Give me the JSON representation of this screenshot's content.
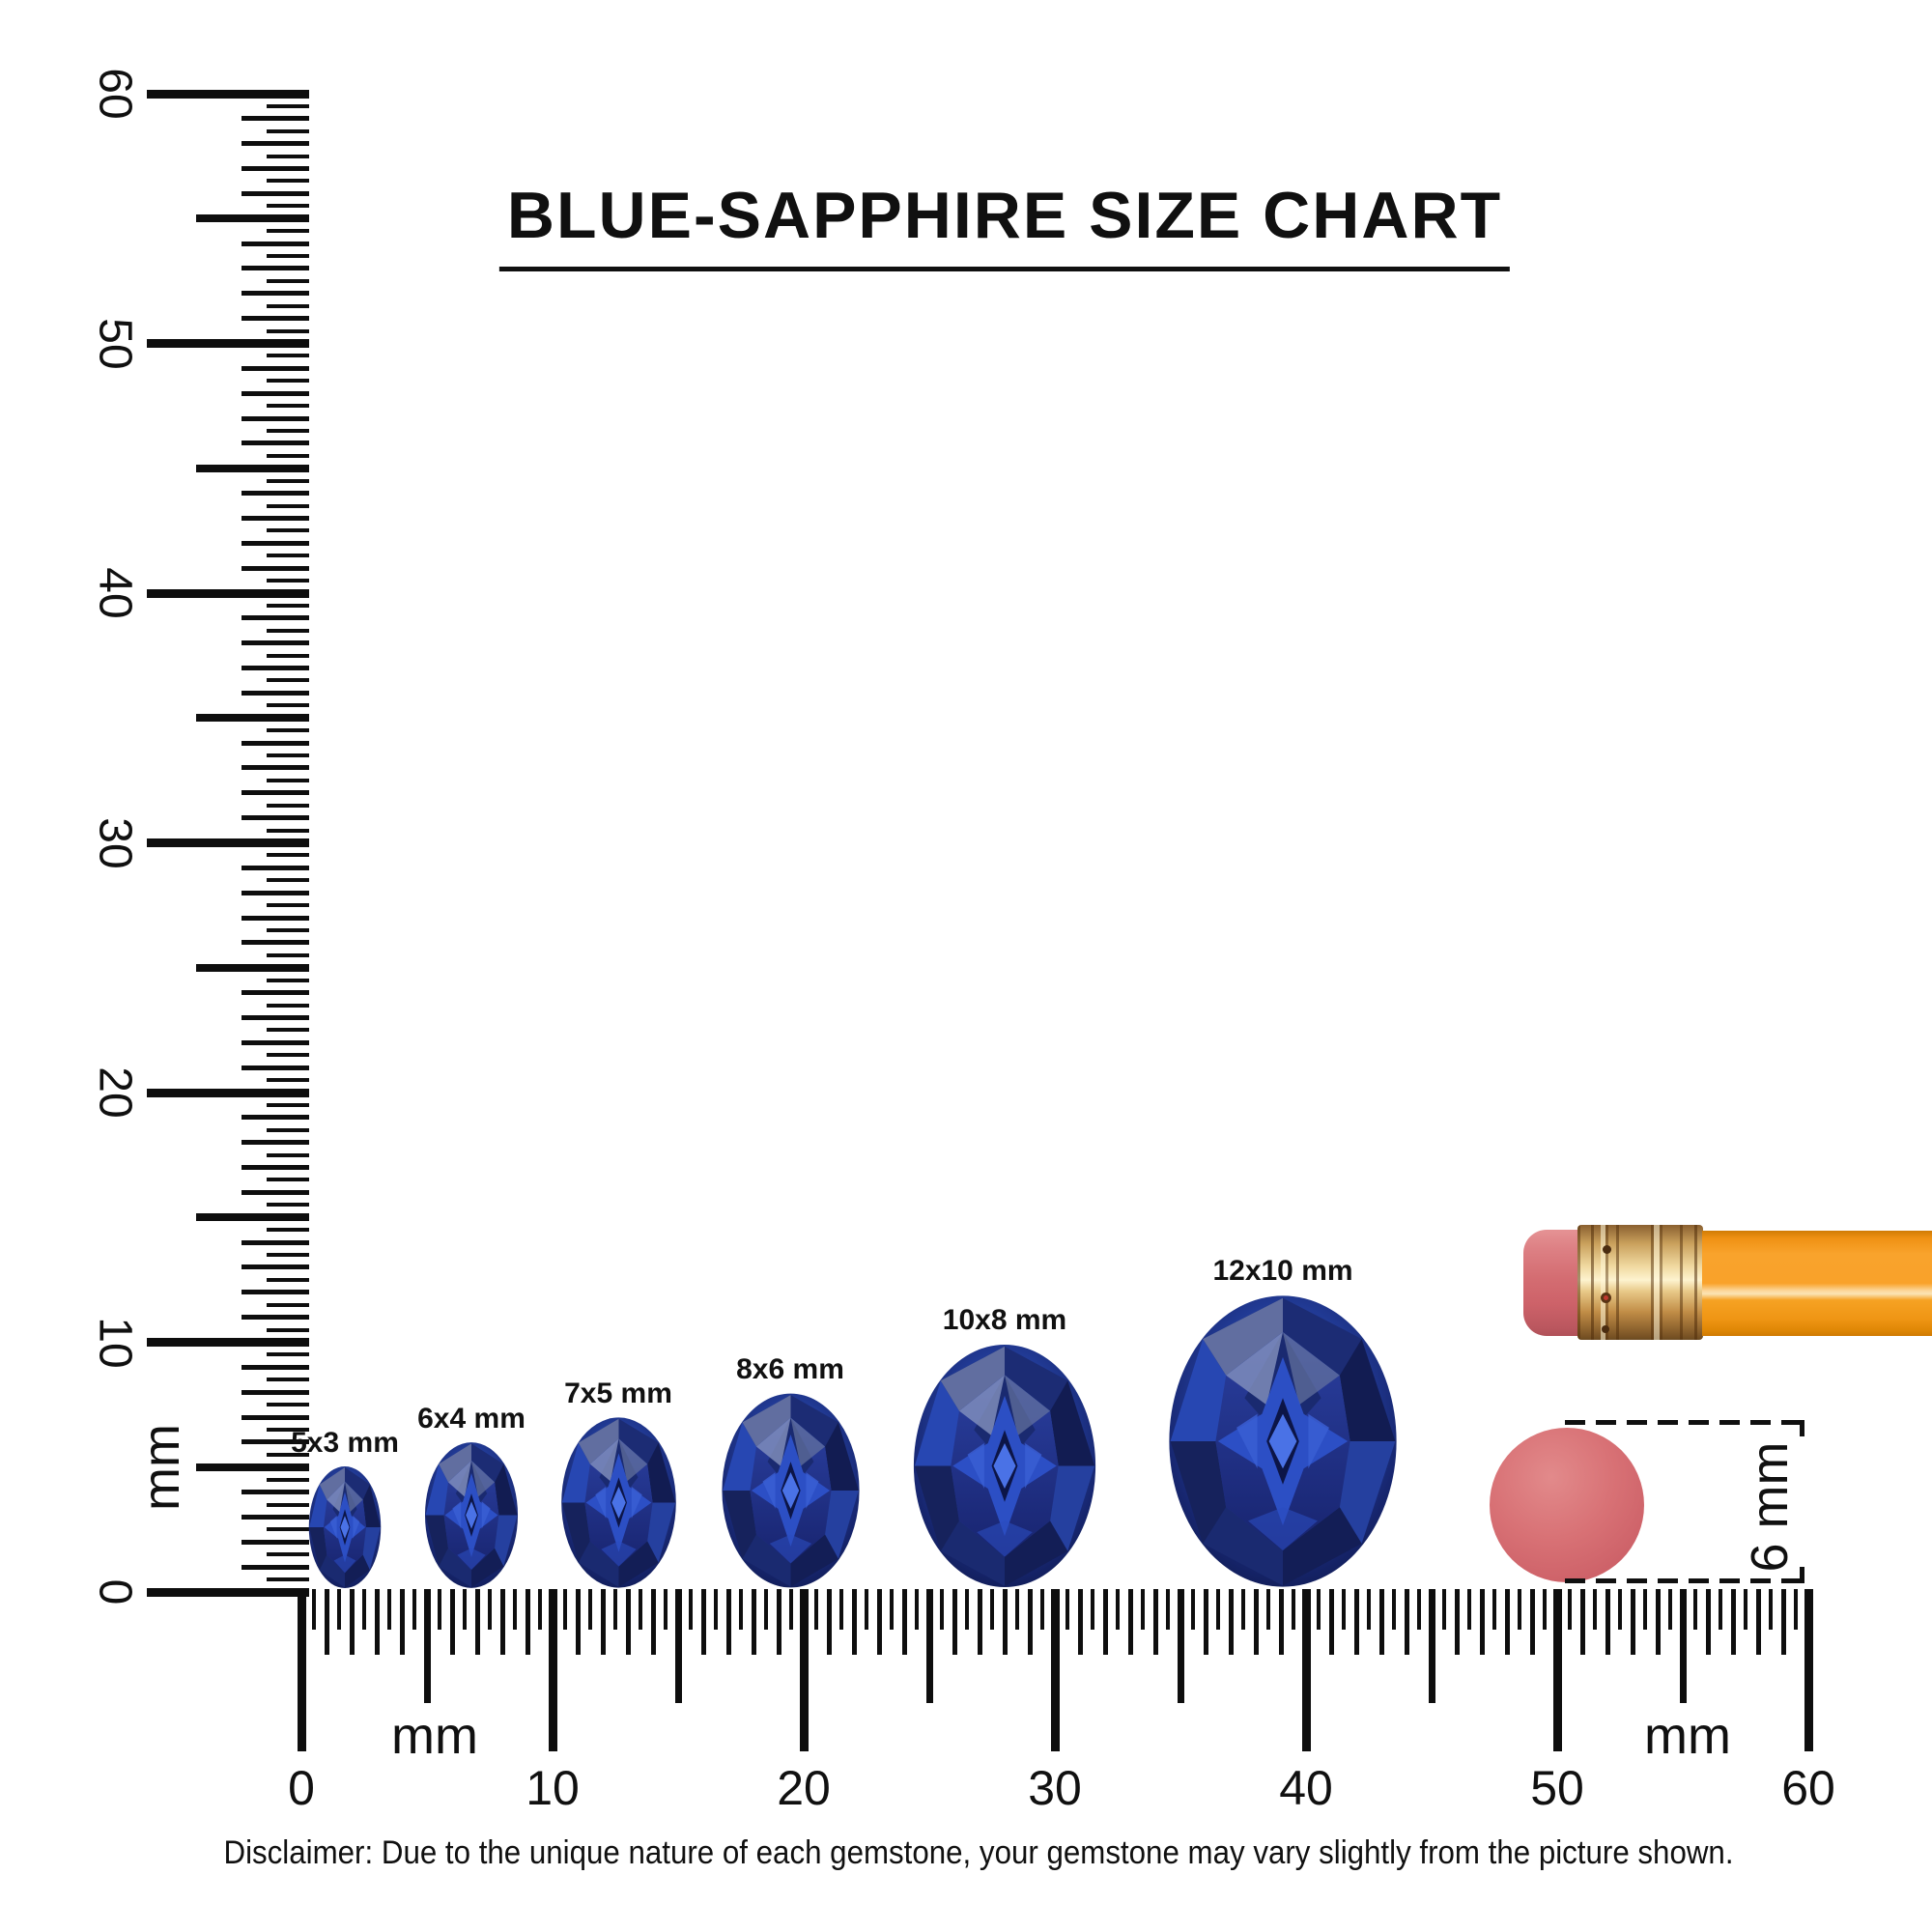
{
  "title": {
    "text": "BLUE-SAPPHIRE SIZE CHART"
  },
  "rulers": {
    "vertical": {
      "unit": "mm",
      "min_mm": 0,
      "max_mm": 60,
      "major_labels": [
        "0",
        "10",
        "20",
        "30",
        "40",
        "50",
        "60"
      ]
    },
    "horizontal": {
      "unit_left": "mm",
      "unit_right": "mm",
      "min_mm": 0,
      "max_mm": 60,
      "major_labels": [
        "0",
        "10",
        "20",
        "30",
        "40",
        "50",
        "60"
      ]
    }
  },
  "gems": [
    {
      "label": "5x3 mm",
      "length_mm": 5,
      "width_mm": 3
    },
    {
      "label": "6x4 mm",
      "length_mm": 6,
      "width_mm": 4
    },
    {
      "label": "7x5 mm",
      "length_mm": 7,
      "width_mm": 5
    },
    {
      "label": "8x6 mm",
      "length_mm": 8,
      "width_mm": 6
    },
    {
      "label": "10x8 mm",
      "length_mm": 10,
      "width_mm": 8
    },
    {
      "label": "12x10 mm",
      "length_mm": 12,
      "width_mm": 10
    }
  ],
  "reference": {
    "circle_label": "6 mm"
  },
  "disclaimer": {
    "text": "Disclaimer: Due to the unique nature of each gemstone, your gemstone may vary slightly from the picture shown."
  },
  "colors": {
    "ink": "#101010",
    "sapphire_royal": "#2d51c8",
    "sapphire_navy": "#131e56",
    "pencil_orange": "#f9a32c",
    "ferrule_gold": "#e8c887",
    "eraser_pink": "#d4696e"
  },
  "chart_data": {
    "type": "table",
    "title": "BLUE-SAPPHIRE SIZE CHART",
    "unit": "mm",
    "oval_sizes_mm": [
      [
        5,
        3
      ],
      [
        6,
        4
      ],
      [
        7,
        5
      ],
      [
        8,
        6
      ],
      [
        10,
        8
      ],
      [
        12,
        10
      ]
    ],
    "ruler_range_mm": [
      0,
      60
    ],
    "reference_objects": [
      {
        "name": "pencil eraser (end view)",
        "diameter_mm": 6
      }
    ]
  }
}
